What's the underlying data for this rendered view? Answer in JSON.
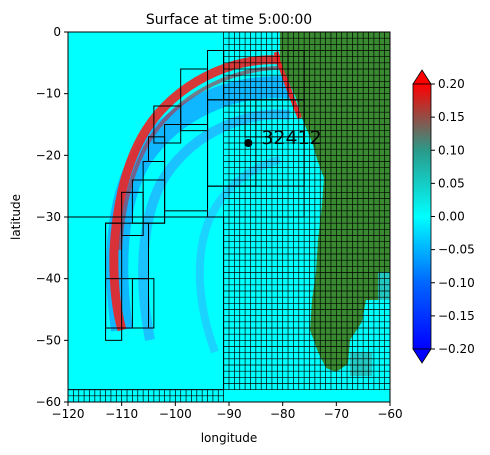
{
  "chart_data": {
    "type": "heatmap",
    "title": "Surface at time 5:00:00",
    "xlabel": "longitude",
    "ylabel": "latitude",
    "xlim": [
      -120,
      -60
    ],
    "ylim": [
      -60,
      0
    ],
    "x_ticks": [
      -120,
      -110,
      -100,
      -90,
      -80,
      -70,
      -60
    ],
    "y_ticks": [
      0,
      -10,
      -20,
      -30,
      -40,
      -50,
      -60
    ],
    "x_tick_labels": [
      "−120",
      "−110",
      "−100",
      "−90",
      "−80",
      "−70",
      "−60"
    ],
    "y_tick_labels": [
      "0",
      "−10",
      "−20",
      "−30",
      "−40",
      "−50",
      "−60"
    ],
    "colorbar": {
      "ticks": [
        0.2,
        0.15,
        0.1,
        0.05,
        0.0,
        -0.05,
        -0.1,
        -0.15,
        -0.2
      ],
      "tick_labels": [
        "0.20",
        "0.15",
        "0.10",
        "0.05",
        "0.00",
        "−0.05",
        "−0.10",
        "−0.15",
        "−0.20"
      ],
      "range": [
        -0.2,
        0.2
      ],
      "extend": "both",
      "colors": {
        "max": "#ff0000",
        "mid_high": "#2a9a8a",
        "zero": "#00ffff",
        "mid_low": "#0066ff",
        "min": "#0000ff"
      }
    },
    "gauge": {
      "label": "32412",
      "longitude": -86.4,
      "latitude": -18.0
    },
    "land_color": "#3a8a32",
    "ocean_color": "#00ffff",
    "grid_line_color": "#000000"
  }
}
